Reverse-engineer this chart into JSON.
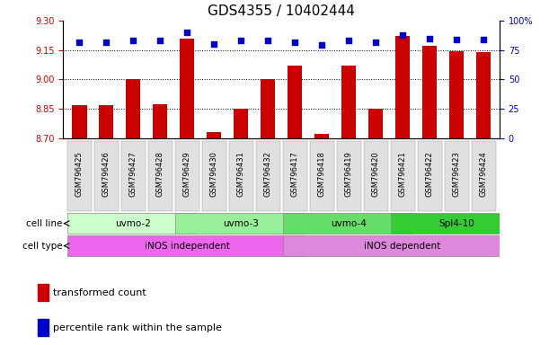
{
  "title": "GDS4355 / 10402444",
  "samples": [
    "GSM796425",
    "GSM796426",
    "GSM796427",
    "GSM796428",
    "GSM796429",
    "GSM796430",
    "GSM796431",
    "GSM796432",
    "GSM796417",
    "GSM796418",
    "GSM796419",
    "GSM796420",
    "GSM796421",
    "GSM796422",
    "GSM796423",
    "GSM796424"
  ],
  "transformed_count": [
    8.87,
    8.87,
    9.0,
    8.875,
    9.21,
    8.73,
    8.85,
    9.0,
    9.07,
    8.72,
    9.07,
    8.85,
    9.22,
    9.17,
    9.145,
    9.14
  ],
  "percentile_rank": [
    82,
    82,
    83,
    83,
    90,
    80,
    83,
    83,
    82,
    79,
    83,
    82,
    88,
    85,
    84,
    84
  ],
  "cell_lines": [
    {
      "label": "uvmo-2",
      "start": 0,
      "end": 4,
      "color": "#ccffcc"
    },
    {
      "label": "uvmo-3",
      "start": 4,
      "end": 8,
      "color": "#99ee99"
    },
    {
      "label": "uvmo-4",
      "start": 8,
      "end": 12,
      "color": "#66dd66"
    },
    {
      "label": "Spl4-10",
      "start": 12,
      "end": 16,
      "color": "#33cc33"
    }
  ],
  "cell_types": [
    {
      "label": "iNOS independent",
      "start": 0,
      "end": 8,
      "color": "#ee66ee"
    },
    {
      "label": "iNOS dependent",
      "start": 8,
      "end": 16,
      "color": "#dd88dd"
    }
  ],
  "ylim_left": [
    8.7,
    9.3
  ],
  "ylim_right": [
    0,
    100
  ],
  "yticks_left": [
    8.7,
    8.85,
    9.0,
    9.15,
    9.3
  ],
  "yticks_right": [
    0,
    25,
    50,
    75,
    100
  ],
  "bar_color": "#cc0000",
  "dot_color": "#0000cc",
  "background_color": "#ffffff",
  "title_fontsize": 11,
  "tick_color_left": "#cc0000",
  "tick_color_right": "#0000cc",
  "dotted_lines": [
    8.85,
    9.0,
    9.15
  ]
}
